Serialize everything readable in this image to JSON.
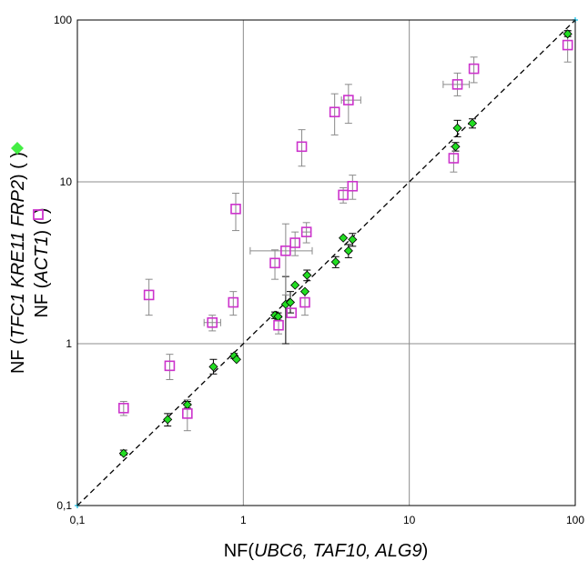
{
  "chart_data": {
    "type": "scatter",
    "xscale": "log",
    "yscale": "log",
    "xlim": [
      0.1,
      100
    ],
    "ylim": [
      0.1,
      100
    ],
    "grid": true,
    "x_ticks": [
      "0,1",
      "1",
      "10",
      "100"
    ],
    "y_ticks": [
      "0,1",
      "1",
      "10",
      "100"
    ],
    "xlabel": {
      "prefix": "NF(",
      "italic": "UBC6, TAF10, ALG9",
      "suffix": ")"
    },
    "ylabel_lines": [
      {
        "prefix": "NF (",
        "italic": "TFC1 KRE11 FRP2",
        "suffix": ") (  )"
      },
      {
        "prefix": "NF (",
        "italic": "ACT1",
        "suffix": ") (  )"
      }
    ],
    "reference_line": {
      "style": "dashed",
      "points": [
        [
          0.1,
          0.1
        ],
        [
          100,
          100
        ]
      ],
      "color": "#000000"
    },
    "series": [
      {
        "marker": "diamond",
        "color": "#22dd22",
        "edge_color": "#000000",
        "error_color": "#000000",
        "points": [
          {
            "x": 0.19,
            "y": 0.21,
            "ylo": 0.205,
            "yhi": 0.22
          },
          {
            "x": 0.35,
            "y": 0.34,
            "ylo": 0.31,
            "yhi": 0.37
          },
          {
            "x": 0.46,
            "y": 0.42,
            "ylo": 0.4,
            "yhi": 0.44
          },
          {
            "x": 0.66,
            "y": 0.72,
            "ylo": 0.65,
            "yhi": 0.8
          },
          {
            "x": 0.88,
            "y": 0.84,
            "ylo": 0.81,
            "yhi": 0.87
          },
          {
            "x": 0.91,
            "y": 0.8
          },
          {
            "x": 1.55,
            "y": 1.5,
            "ylo": 1.43,
            "yhi": 1.57
          },
          {
            "x": 1.62,
            "y": 1.47,
            "ylo": 1.4,
            "yhi": 1.55
          },
          {
            "x": 1.8,
            "y": 1.75,
            "ylo": 1.0,
            "yhi": 2.6
          },
          {
            "x": 1.92,
            "y": 1.8,
            "ylo": 1.55,
            "yhi": 2.1
          },
          {
            "x": 2.05,
            "y": 2.3
          },
          {
            "x": 2.35,
            "y": 2.1
          },
          {
            "x": 2.42,
            "y": 2.65,
            "ylo": 2.45,
            "yhi": 2.85
          },
          {
            "x": 3.6,
            "y": 3.2,
            "ylo": 2.95,
            "yhi": 3.45
          },
          {
            "x": 4.0,
            "y": 4.5
          },
          {
            "x": 4.3,
            "y": 3.75,
            "ylo": 3.4,
            "yhi": 4.1
          },
          {
            "x": 4.55,
            "y": 4.4,
            "ylo": 4.0,
            "yhi": 4.8
          },
          {
            "x": 19.0,
            "y": 16.5,
            "ylo": 15.5,
            "yhi": 17.5
          },
          {
            "x": 19.5,
            "y": 21.5,
            "ylo": 19.0,
            "yhi": 24.0
          },
          {
            "x": 24.0,
            "y": 23.0,
            "ylo": 21.5,
            "yhi": 24.5
          },
          {
            "x": 90.0,
            "y": 82.0,
            "ylo": 79.0,
            "yhi": 86.0
          }
        ]
      },
      {
        "marker": "square-open",
        "color": "#cc33cc",
        "error_color": "#8a8a8a",
        "points": [
          {
            "x": 0.19,
            "y": 0.4,
            "ylo": 0.36,
            "yhi": 0.44
          },
          {
            "x": 0.27,
            "y": 2.0,
            "ylo": 1.5,
            "yhi": 2.5
          },
          {
            "x": 0.36,
            "y": 0.73,
            "ylo": 0.6,
            "yhi": 0.86
          },
          {
            "x": 0.46,
            "y": 0.37,
            "ylo": 0.29,
            "yhi": 0.45
          },
          {
            "x": 0.65,
            "y": 1.35,
            "ylo": 1.2,
            "yhi": 1.5,
            "xlo": 0.58,
            "xhi": 0.73
          },
          {
            "x": 0.87,
            "y": 1.8,
            "ylo": 1.5,
            "yhi": 2.1
          },
          {
            "x": 0.9,
            "y": 6.8,
            "ylo": 5.0,
            "yhi": 8.5
          },
          {
            "x": 1.55,
            "y": 3.15,
            "ylo": 2.5,
            "yhi": 3.8
          },
          {
            "x": 1.63,
            "y": 1.3,
            "ylo": 1.15,
            "yhi": 1.45
          },
          {
            "x": 1.8,
            "y": 3.75,
            "ylo": 2.0,
            "yhi": 5.5,
            "xlo": 1.1,
            "xhi": 2.6
          },
          {
            "x": 1.95,
            "y": 1.55
          },
          {
            "x": 2.05,
            "y": 4.2,
            "ylo": 3.5,
            "yhi": 4.9
          },
          {
            "x": 2.25,
            "y": 16.5,
            "ylo": 12.5,
            "yhi": 21.0
          },
          {
            "x": 2.35,
            "y": 1.8,
            "ylo": 1.5,
            "yhi": 2.1
          },
          {
            "x": 2.4,
            "y": 4.9,
            "ylo": 4.2,
            "yhi": 5.6,
            "xlo": 2.25,
            "xhi": 2.55
          },
          {
            "x": 3.55,
            "y": 27.0,
            "ylo": 19.5,
            "yhi": 35.0
          },
          {
            "x": 4.0,
            "y": 8.3,
            "ylo": 7.4,
            "yhi": 9.2
          },
          {
            "x": 4.3,
            "y": 32.0,
            "ylo": 23.0,
            "yhi": 40.0,
            "xlo": 3.9,
            "xhi": 5.1
          },
          {
            "x": 4.55,
            "y": 9.4,
            "ylo": 7.8,
            "yhi": 11.0
          },
          {
            "x": 18.5,
            "y": 14.0,
            "ylo": 11.5,
            "yhi": 16.5
          },
          {
            "x": 19.5,
            "y": 40.0,
            "ylo": 34.0,
            "yhi": 47.0,
            "xlo": 16.0,
            "xhi": 23.0
          },
          {
            "x": 24.5,
            "y": 50.0,
            "ylo": 41.0,
            "yhi": 59.0
          },
          {
            "x": 90.0,
            "y": 70.0,
            "ylo": 55.0,
            "yhi": 85.0
          }
        ]
      }
    ]
  }
}
